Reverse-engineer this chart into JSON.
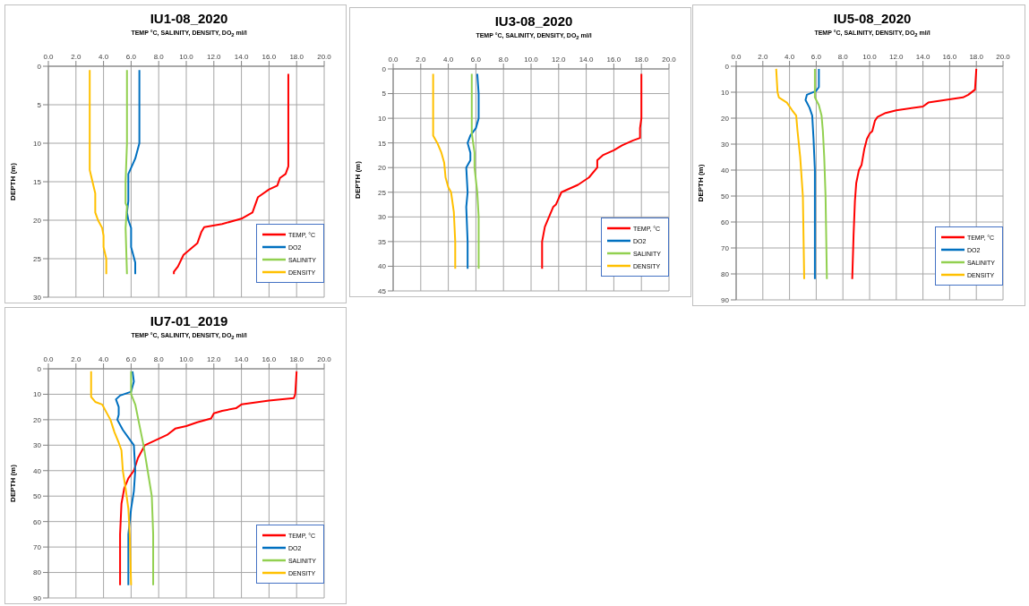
{
  "chart_data": [
    {
      "type": "line",
      "title": "IU1-08_2020",
      "xlabel": "TEMP °C, SALINITY, DENSITY, DO$_{2}$ ml/l",
      "ylabel": "DEPTH (m)",
      "xlim": [
        0,
        20
      ],
      "xticks": [
        {
          "value": 0,
          "label": "0.0"
        },
        {
          "value": 2,
          "label": "2.0"
        },
        {
          "value": 4,
          "label": "4.0"
        },
        {
          "value": 6,
          "label": "6.0"
        },
        {
          "value": 8,
          "label": "8.0"
        },
        {
          "value": 10,
          "label": "10.0"
        },
        {
          "value": 12,
          "label": "12.0"
        },
        {
          "value": 14,
          "label": "14.0"
        },
        {
          "value": 16,
          "label": "16.0"
        },
        {
          "value": 18,
          "label": "18.0"
        },
        {
          "value": 20,
          "label": "20.0"
        }
      ],
      "ylim": [
        30,
        0
      ],
      "yticks": [
        0,
        5,
        10,
        15,
        20,
        25,
        30
      ],
      "grid": true,
      "legend": "bottom right",
      "marker": "none",
      "line_style": "solid",
      "series": [
        {
          "name": "TEMP, °C",
          "color": "#ff0000",
          "x": [
            17.4,
            17.4,
            17.4,
            17.4,
            17.2,
            16.8,
            16.6,
            16.0,
            15.2,
            14.8,
            14.0,
            12.6,
            11.3,
            11.1,
            10.8,
            9.8,
            9.4,
            9.1,
            9.1
          ],
          "values": [
            1,
            5,
            10,
            13,
            14,
            14.5,
            15.5,
            16,
            17,
            19,
            19.8,
            20.5,
            20.9,
            21.5,
            23,
            24.5,
            26,
            26.7,
            27
          ]
        },
        {
          "name": "DO2",
          "color": "#0070c0",
          "x": [
            6.6,
            6.6,
            6.6,
            6.3,
            5.8,
            5.8,
            5.7,
            5.8,
            6.0,
            6.0,
            6.3,
            6.3
          ],
          "values": [
            0.5,
            5,
            10,
            12,
            14,
            17.5,
            19,
            20,
            21,
            23.5,
            25.5,
            27
          ]
        },
        {
          "name": "SALINITY",
          "color": "#92d050",
          "x": [
            5.7,
            5.7,
            5.6,
            5.6,
            5.7,
            5.6,
            5.7
          ],
          "values": [
            0.5,
            10,
            15,
            17.8,
            18.2,
            21,
            27
          ]
        },
        {
          "name": "DENSITY",
          "color": "#ffc000",
          "x": [
            3.0,
            3.0,
            3.2,
            3.4,
            3.4,
            3.6,
            3.9,
            4.0,
            4.0,
            4.2,
            4.2
          ],
          "values": [
            0.5,
            13.5,
            15,
            16.5,
            19,
            20,
            21,
            22,
            23.5,
            25,
            27
          ]
        }
      ]
    },
    {
      "type": "line",
      "title": "IU3-08_2020",
      "xlabel": "TEMP °C, SALINITY, DENSITY, DO$_{2}$ ml/l",
      "ylabel": "DEPTH (m)",
      "xlim": [
        0,
        20
      ],
      "xticks": [
        {
          "value": 0,
          "label": "0.0"
        },
        {
          "value": 2,
          "label": "2.0"
        },
        {
          "value": 4,
          "label": "4.0"
        },
        {
          "value": 6,
          "label": "6.0"
        },
        {
          "value": 8,
          "label": "8.0"
        },
        {
          "value": 10,
          "label": "10.0"
        },
        {
          "value": 12,
          "label": "12.0"
        },
        {
          "value": 14,
          "label": "14.0"
        },
        {
          "value": 16,
          "label": "16.0"
        },
        {
          "value": 18,
          "label": "18.0"
        },
        {
          "value": 20,
          "label": "20.0"
        }
      ],
      "ylim": [
        45,
        0
      ],
      "yticks": [
        0,
        5,
        10,
        15,
        20,
        25,
        30,
        35,
        40,
        45
      ],
      "grid": true,
      "legend": "bottom right",
      "marker": "none",
      "line_style": "solid",
      "series": [
        {
          "name": "TEMP, °C",
          "color": "#ff0000",
          "x": [
            18.0,
            18.0,
            17.9,
            17.9,
            17.4,
            16.6,
            16.0,
            15.2,
            14.8,
            14.8,
            14.2,
            13.4,
            12.6,
            12.2,
            11.8,
            11.6,
            11.3,
            11.0,
            10.8,
            10.8
          ],
          "values": [
            1,
            10,
            12,
            14,
            14.5,
            15.5,
            16.5,
            17.5,
            18.5,
            20,
            22,
            23.5,
            24.5,
            25,
            27.5,
            28,
            30,
            32,
            35,
            40.5
          ]
        },
        {
          "name": "DO2",
          "color": "#0070c0",
          "x": [
            6.1,
            6.2,
            6.2,
            6.0,
            5.6,
            5.4,
            5.6,
            5.6,
            5.3,
            5.4,
            5.3,
            5.4,
            5.4
          ],
          "values": [
            1,
            5,
            10,
            12,
            13.5,
            15,
            17,
            18.5,
            20,
            25,
            28,
            35,
            40.5
          ]
        },
        {
          "name": "SALINITY",
          "color": "#92d050",
          "x": [
            5.7,
            5.7,
            5.9,
            5.9,
            6.1,
            6.2,
            6.2
          ],
          "values": [
            1,
            13,
            17,
            20,
            25,
            30,
            40.5
          ]
        },
        {
          "name": "DENSITY",
          "color": "#ffc000",
          "x": [
            2.9,
            2.9,
            3.2,
            3.5,
            3.7,
            3.8,
            4.0,
            4.2,
            4.4,
            4.5,
            4.5
          ],
          "values": [
            1,
            13.5,
            15,
            17,
            19,
            22,
            24,
            25,
            29,
            35,
            40.5
          ]
        }
      ]
    },
    {
      "type": "line",
      "title": "IU5-08_2020",
      "xlabel": "TEMP °C, SALINITY, DENSITY, DO$_{2}$ ml/l",
      "ylabel": "DEPTH (m)",
      "xlim": [
        0,
        20
      ],
      "xticks": [
        {
          "value": 0,
          "label": "0.0"
        },
        {
          "value": 2,
          "label": "2.0"
        },
        {
          "value": 4,
          "label": "4.0"
        },
        {
          "value": 6,
          "label": "6.0"
        },
        {
          "value": 8,
          "label": "8.0"
        },
        {
          "value": 10,
          "label": "10.0"
        },
        {
          "value": 12,
          "label": "12.0"
        },
        {
          "value": 14,
          "label": "14.0"
        },
        {
          "value": 16,
          "label": "16.0"
        },
        {
          "value": 18,
          "label": "18.0"
        },
        {
          "value": 20,
          "label": "20.0"
        }
      ],
      "ylim": [
        90,
        0
      ],
      "yticks": [
        0,
        10,
        20,
        30,
        40,
        50,
        60,
        70,
        80,
        90
      ],
      "grid": true,
      "legend": "bottom right",
      "marker": "none",
      "line_style": "solid",
      "series": [
        {
          "name": "TEMP, °C",
          "color": "#ff0000",
          "x": [
            18.0,
            17.9,
            17.4,
            17.0,
            14.4,
            14.0,
            12.0,
            11.2,
            10.6,
            10.4,
            10.2,
            10.0,
            9.8,
            9.6,
            9.4,
            9.2,
            9.0,
            8.9,
            8.8,
            8.7
          ],
          "values": [
            1,
            9,
            11,
            12,
            14,
            15.5,
            17,
            18,
            19.5,
            21,
            25,
            26,
            28,
            32,
            38,
            40,
            45,
            52,
            65,
            82
          ]
        },
        {
          "name": "DO2",
          "color": "#0070c0",
          "x": [
            6.2,
            6.2,
            6.0,
            5.3,
            5.2,
            5.5,
            5.7,
            5.8,
            5.9,
            5.9
          ],
          "values": [
            1,
            8,
            9.5,
            11,
            13,
            16,
            19,
            28,
            40,
            82
          ]
        },
        {
          "name": "SALINITY",
          "color": "#92d050",
          "x": [
            5.9,
            5.9,
            6.2,
            6.4,
            6.5,
            6.6,
            6.7,
            6.8
          ],
          "values": [
            1,
            12,
            15,
            19,
            25,
            35,
            50,
            82
          ]
        },
        {
          "name": "DENSITY",
          "color": "#ffc000",
          "x": [
            3.0,
            3.1,
            3.2,
            3.8,
            4.2,
            4.5,
            4.6,
            4.8,
            5.0,
            5.1
          ],
          "values": [
            1,
            10,
            12,
            14,
            17,
            19,
            25,
            35,
            50,
            82
          ]
        }
      ]
    },
    {
      "type": "line",
      "title": "IU7-01_2019",
      "xlabel": "TEMP °C, SALINITY, DENSITY, DO$_{2}$ ml/l",
      "ylabel": "DEPTH (m)",
      "xlim": [
        0,
        20
      ],
      "xticks": [
        {
          "value": 0,
          "label": "0.0"
        },
        {
          "value": 2,
          "label": "2.0"
        },
        {
          "value": 4,
          "label": "4.0"
        },
        {
          "value": 6,
          "label": "6.0"
        },
        {
          "value": 8,
          "label": "8.0"
        },
        {
          "value": 10,
          "label": "10.0"
        },
        {
          "value": 12,
          "label": "12.0"
        },
        {
          "value": 14,
          "label": "14.0"
        },
        {
          "value": 16,
          "label": "16.0"
        },
        {
          "value": 18,
          "label": "18.0"
        },
        {
          "value": 20,
          "label": "20.0"
        }
      ],
      "ylim": [
        90,
        0
      ],
      "yticks": [
        0,
        10,
        20,
        30,
        40,
        50,
        60,
        70,
        80,
        90
      ],
      "grid": true,
      "legend": "bottom right",
      "marker": "none",
      "line_style": "solid",
      "series": [
        {
          "name": "TEMP, °C",
          "color": "#ff0000",
          "x": [
            18.0,
            17.9,
            17.8,
            16.0,
            14.0,
            13.6,
            12.6,
            12.0,
            11.8,
            10.8,
            10.0,
            9.2,
            8.6,
            7.8,
            7.0,
            6.5,
            6.2,
            5.8,
            5.5,
            5.3,
            5.2,
            5.2
          ],
          "values": [
            1,
            10,
            11.5,
            12.5,
            14,
            15.5,
            16.5,
            17.5,
            19.5,
            21,
            22.5,
            23.5,
            26,
            28,
            30,
            35,
            40,
            43,
            47,
            53,
            65,
            85
          ]
        },
        {
          "name": "DO2",
          "color": "#0070c0",
          "x": [
            6.1,
            6.2,
            6.0,
            5.2,
            4.9,
            5.1,
            5.1,
            5.0,
            5.4,
            5.8,
            6.2,
            6.3,
            6.2,
            6.0,
            5.8,
            5.8
          ],
          "values": [
            1,
            5,
            9,
            10.5,
            12,
            15,
            18,
            20,
            24,
            27,
            30,
            40,
            48,
            55,
            65,
            85
          ]
        },
        {
          "name": "SALINITY",
          "color": "#92d050",
          "x": [
            6.0,
            6.0,
            6.3,
            6.6,
            6.9,
            7.2,
            7.5,
            7.6,
            7.6
          ],
          "values": [
            1,
            10,
            14,
            22,
            30,
            40,
            50,
            65,
            85
          ]
        },
        {
          "name": "DENSITY",
          "color": "#ffc000",
          "x": [
            3.1,
            3.1,
            3.4,
            3.9,
            4.2,
            4.5,
            4.8,
            5.1,
            5.3,
            5.4,
            5.6,
            5.8,
            5.9,
            6.0
          ],
          "values": [
            1,
            11,
            13,
            14,
            17,
            20,
            25,
            29,
            32,
            40,
            47,
            55,
            65,
            85
          ]
        }
      ]
    }
  ]
}
